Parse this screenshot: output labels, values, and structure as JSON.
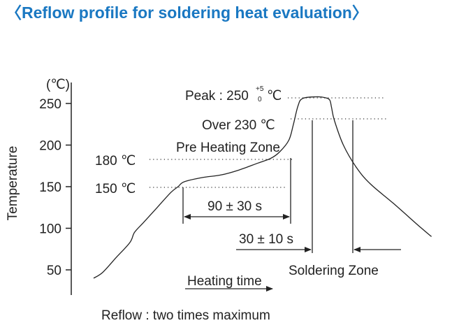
{
  "title": "〈Reflow profile for soldering heat evaluation〉",
  "colors": {
    "title": "#1a78c2",
    "curve": "#222222"
  },
  "chart_data": {
    "type": "line",
    "title": "〈Reflow profile for soldering heat evaluation〉",
    "ylabel": "Temperature",
    "yunit": "(℃)",
    "yticks": [
      50,
      100,
      150,
      200,
      250
    ],
    "ylim": [
      30,
      265
    ],
    "grid": false,
    "series": [
      {
        "values": [
          [
            0,
            40
          ],
          [
            10,
            47
          ],
          [
            25,
            65
          ],
          [
            40,
            83
          ],
          [
            45,
            95
          ],
          [
            55,
            107
          ],
          [
            70,
            125
          ],
          [
            85,
            143
          ],
          [
            93,
            150
          ],
          [
            100,
            156
          ],
          [
            120,
            161
          ],
          [
            140,
            164
          ],
          [
            160,
            170
          ],
          [
            180,
            178
          ],
          [
            195,
            184
          ],
          [
            205,
            192
          ],
          [
            215,
            206
          ],
          [
            220,
            225
          ],
          [
            225,
            247
          ],
          [
            230,
            256
          ],
          [
            245,
            258
          ],
          [
            255,
            257
          ],
          [
            260,
            254
          ],
          [
            262,
            245
          ],
          [
            265,
            230
          ],
          [
            275,
            200
          ],
          [
            290,
            172
          ],
          [
            305,
            153
          ],
          [
            330,
            130
          ],
          [
            360,
            101
          ],
          [
            372,
            90
          ]
        ]
      }
    ],
    "annotations": {
      "peak": {
        "prefix": "Peak : 250",
        "sup": "+5",
        "sub": "0",
        "unit": "℃",
        "y": 250
      },
      "over230": {
        "text": "Over 230 ℃",
        "y": 230
      },
      "preheat_label": "Pre Heating Zone",
      "t180": {
        "text": "180 ℃",
        "y": 180
      },
      "t150": {
        "text": "150 ℃",
        "y": 150
      },
      "preheat_duration": "90 ± 30 s",
      "solder_duration": "30 ± 10 s",
      "solder_zone": "Soldering Zone",
      "heating_time": "Heating time",
      "footer": "Reflow : two times maximum"
    }
  }
}
